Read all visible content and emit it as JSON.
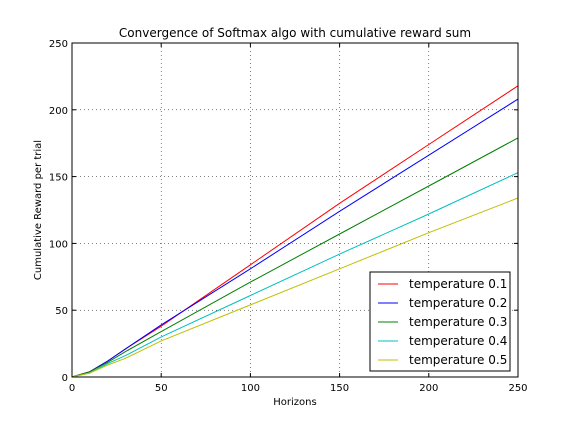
{
  "chart_data": {
    "type": "line",
    "title": "Convergence of Softmax algo with cumulative reward sum",
    "xlabel": "Horizons",
    "ylabel": "Cumulative Reward per trial",
    "xlim": [
      0,
      250
    ],
    "ylim": [
      0,
      250
    ],
    "xticks": [
      0,
      50,
      100,
      150,
      200,
      250
    ],
    "yticks": [
      0,
      50,
      100,
      150,
      200,
      250
    ],
    "grid": true,
    "legend_position": "lower-right",
    "series": [
      {
        "name": "temperature 0.1",
        "color": "#ff0000",
        "x": [
          0,
          10,
          20,
          30,
          50,
          100,
          150,
          200,
          250
        ],
        "y": [
          0,
          4,
          12,
          21,
          38,
          84,
          130,
          174,
          218
        ]
      },
      {
        "name": "temperature 0.2",
        "color": "#0000ff",
        "x": [
          0,
          10,
          20,
          30,
          50,
          100,
          150,
          200,
          250
        ],
        "y": [
          0,
          4,
          12,
          21,
          39,
          81,
          124,
          166,
          208
        ]
      },
      {
        "name": "temperature 0.3",
        "color": "#008000",
        "x": [
          0,
          10,
          20,
          30,
          50,
          100,
          150,
          200,
          250
        ],
        "y": [
          0,
          4,
          11,
          19,
          34,
          71,
          107,
          143,
          179
        ]
      },
      {
        "name": "temperature 0.4",
        "color": "#00bfbf",
        "x": [
          0,
          10,
          20,
          30,
          50,
          100,
          150,
          200,
          250
        ],
        "y": [
          0,
          3,
          10,
          16,
          30,
          61,
          92,
          122,
          153
        ]
      },
      {
        "name": "temperature 0.5",
        "color": "#bfbf00",
        "x": [
          0,
          10,
          20,
          30,
          50,
          100,
          150,
          200,
          250
        ],
        "y": [
          0,
          3,
          9,
          14,
          27,
          54,
          81,
          108,
          134
        ]
      }
    ]
  }
}
